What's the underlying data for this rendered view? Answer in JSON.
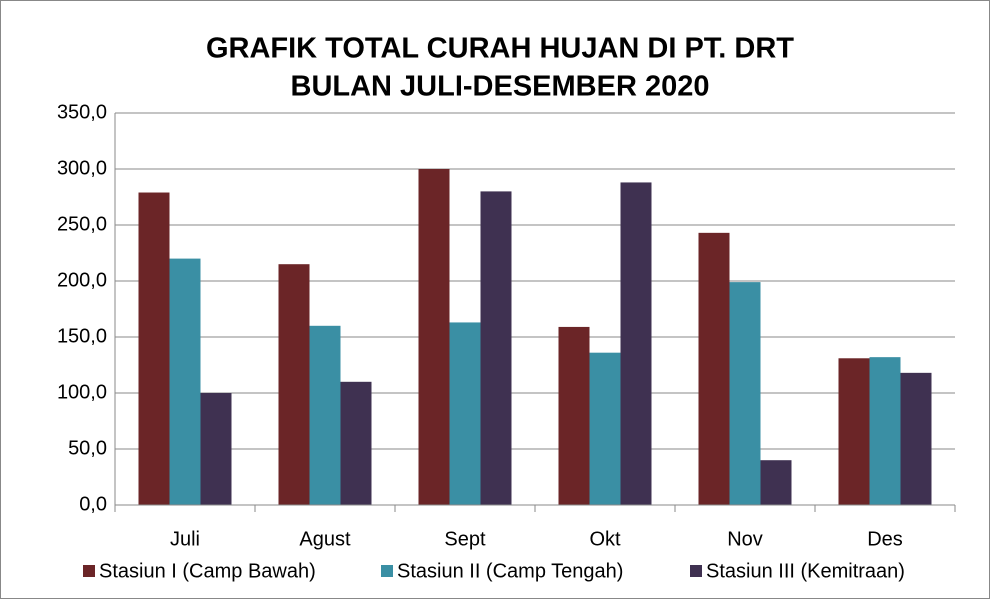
{
  "chart_data": {
    "type": "bar",
    "title": [
      "GRAFIK TOTAL CURAH HUJAN DI PT. DRT",
      "BULAN JULI-DESEMBER 2020"
    ],
    "categories": [
      "Juli",
      "Agust",
      "Sept",
      "Okt",
      "Nov",
      "Des"
    ],
    "series": [
      {
        "name": "Stasiun I (Camp Bawah)",
        "color": "#6b2527",
        "values": [
          279,
          215,
          300,
          159,
          243,
          131
        ]
      },
      {
        "name": "Stasiun II (Camp Tengah)",
        "color": "#3a8fa4",
        "values": [
          220,
          160,
          163,
          136,
          199,
          132
        ]
      },
      {
        "name": "Stasiun III (Kemitraan)",
        "color": "#3f3151",
        "values": [
          100,
          110,
          280,
          288,
          40,
          118
        ]
      }
    ],
    "ylim": [
      0,
      350
    ],
    "yticks": [
      {
        "value": 0,
        "label": "0,0"
      },
      {
        "value": 50,
        "label": "50,0"
      },
      {
        "value": 100,
        "label": "100,0"
      },
      {
        "value": 150,
        "label": "150,0"
      },
      {
        "value": 200,
        "label": "200,0"
      },
      {
        "value": 250,
        "label": "250,0"
      },
      {
        "value": 300,
        "label": "300,0"
      },
      {
        "value": 350,
        "label": "350,0"
      }
    ],
    "grid": true,
    "legend": "bottom"
  }
}
